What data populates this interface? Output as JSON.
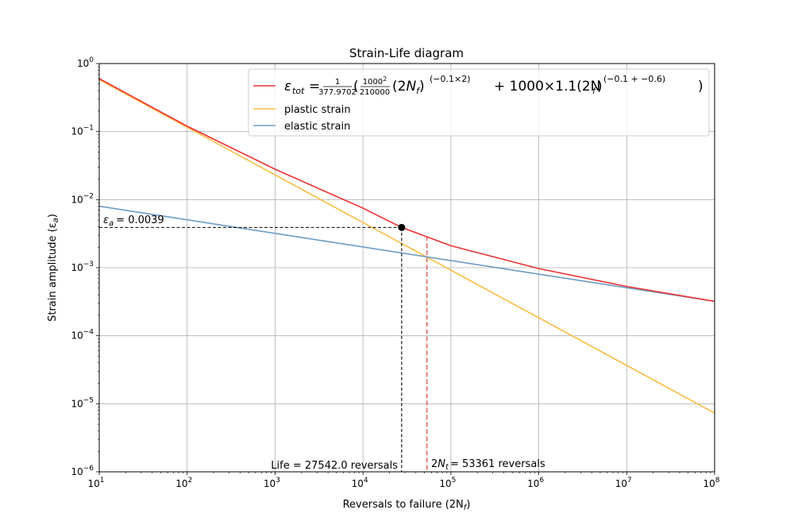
{
  "chart_data": {
    "type": "line",
    "title": "Strain-Life diagram",
    "xlabel": "Reversals to failure (2N",
    "xlabel_sub": "f",
    "ylabel": "Strain amplitude (ε",
    "ylabel_sub": "a",
    "x_scale": "log",
    "y_scale": "log",
    "xlim": [
      10,
      100000000
    ],
    "ylim": [
      1e-06,
      1
    ],
    "grid": true,
    "legend_position": "top-right",
    "x_ticks": [
      {
        "value": 10,
        "base": "10",
        "exp": "1"
      },
      {
        "value": 100,
        "base": "10",
        "exp": "2"
      },
      {
        "value": 1000,
        "base": "10",
        "exp": "3"
      },
      {
        "value": 10000,
        "base": "10",
        "exp": "4"
      },
      {
        "value": 100000,
        "base": "10",
        "exp": "5"
      },
      {
        "value": 1000000,
        "base": "10",
        "exp": "6"
      },
      {
        "value": 10000000,
        "base": "10",
        "exp": "7"
      },
      {
        "value": 100000000,
        "base": "10",
        "exp": "8"
      }
    ],
    "y_ticks": [
      {
        "value": 1e-06,
        "base": "10",
        "exp": "−6"
      },
      {
        "value": 1e-05,
        "base": "10",
        "exp": "−5"
      },
      {
        "value": 0.0001,
        "base": "10",
        "exp": "−4"
      },
      {
        "value": 0.001,
        "base": "10",
        "exp": "−3"
      },
      {
        "value": 0.01,
        "base": "10",
        "exp": "−2"
      },
      {
        "value": 0.1,
        "base": "10",
        "exp": "−1"
      },
      {
        "value": 1,
        "base": "10",
        "exp": "0"
      }
    ],
    "series": [
      {
        "name": "ε_tot = 1/377.9702 (1000²/210000 (2N_f)^(−0.1×2) + 1000×1.1 (2N_f)^(−0.1+−0.6))",
        "color": "#ee3333",
        "x": [
          10,
          100,
          1000,
          10000,
          27542,
          100000,
          1000000,
          10000000,
          100000000
        ],
        "y": [
          0.6,
          0.12,
          0.028,
          0.0075,
          0.0039,
          0.0021,
          0.00097,
          0.00053,
          0.00032
        ]
      },
      {
        "name": "plastic strain",
        "color": "#fbbc44",
        "x": [
          10,
          100000000
        ],
        "y": [
          0.58,
          7.3e-06
        ]
      },
      {
        "name": "elastic strain",
        "color": "#6b9bc3",
        "x": [
          10,
          100000000
        ],
        "y": [
          0.008,
          0.00032
        ]
      }
    ],
    "legend": {
      "formula": {
        "eps": "ε",
        "tot": "tot",
        "num1": "1",
        "den1": "377.9702",
        "num2": "1000",
        "num2_exp": "2",
        "den2": "210000",
        "term1_exp": "(−0.1×2)",
        "middle": " + 1000×1.1(2N",
        "term2_exp": "(−0.1 + −0.6)"
      },
      "plastic": "plastic strain",
      "elastic": "elastic strain"
    },
    "marker": {
      "x": 27542,
      "y": 0.0039,
      "color": "#000000"
    },
    "transition_line": {
      "x": 53361,
      "color": "#ee5555"
    },
    "annotations": {
      "strain_label": "= 0.0039",
      "life_label": "Life = 27542.0 reversals",
      "transition_label": "= 53361 reversals"
    }
  }
}
